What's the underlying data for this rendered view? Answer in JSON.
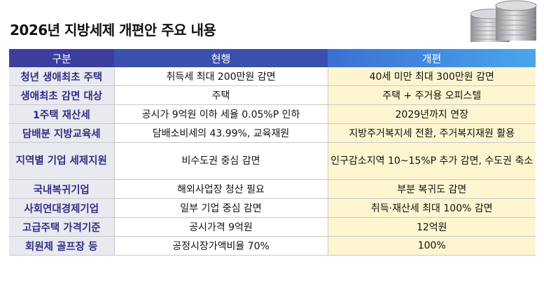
{
  "title": "2026년 지방세제 개편안 주요 내용",
  "columns": [
    "구분",
    "현행",
    "개편"
  ],
  "rows": [
    {
      "category": "청년 생애최초 주택",
      "current": "취득세 최대 200만원 감면",
      "reform": "40세 미만 최대 300만원 감면"
    },
    {
      "category": "생애최초 감면 대상",
      "current": "주택",
      "reform": "주택 + 주거용 오피스텔"
    },
    {
      "category": "1주택 재산세",
      "current": "공시가 9억원 이하 세율 0.05%P 인하",
      "reform": "2029년까지 연장"
    },
    {
      "category": "담배분 지방교육세",
      "current": "담배소비세의 43.99%, 교육재원",
      "reform": "지방주거복지세 전환, 주거복지재원 활용"
    },
    {
      "category": "지역별 기업 세제지원",
      "current": "비수도권 중심 감면",
      "reform": "인구감소지역 10~15%P 추가 감면, 수도권 축소"
    },
    {
      "category": "국내복귀기업",
      "current": "해외사업장 청산 필요",
      "reform": "부분 복귀도 감면"
    },
    {
      "category": "사회연대경제기업",
      "current": "일부 기업 중심 감면",
      "reform": "취득·재산세 최대 100% 감면"
    },
    {
      "category": "고급주택 가격기준",
      "current": "공시가격 9억원",
      "reform": "12억원"
    },
    {
      "category": "회원제 골프장 등",
      "current": "공정시장가액비율 70%",
      "reform": "100%"
    }
  ],
  "colors": {
    "header_dark": "#3d3d9e",
    "header_light": "#4aa6ec",
    "category_bg": "#e9eaf0",
    "reform_bg": "#fdf5d0"
  },
  "decoration": "coin-stack-icon"
}
